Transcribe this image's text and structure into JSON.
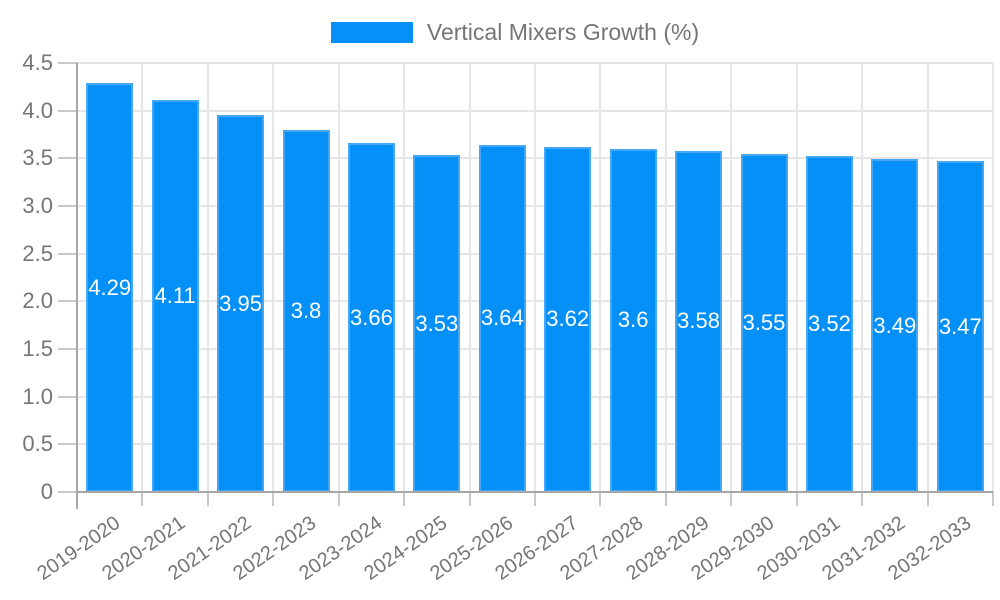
{
  "legend": {
    "label": "Vertical Mixers Growth (%)"
  },
  "chart_data": {
    "type": "bar",
    "title": "",
    "series_name": "Vertical Mixers Growth (%)",
    "categories": [
      "2019-2020",
      "2020-2021",
      "2021-2022",
      "2022-2023",
      "2023-2024",
      "2024-2025",
      "2025-2026",
      "2026-2027",
      "2027-2028",
      "2028-2029",
      "2029-2030",
      "2030-2031",
      "2031-2032",
      "2032-2033"
    ],
    "values": [
      4.29,
      4.11,
      3.95,
      3.8,
      3.66,
      3.53,
      3.64,
      3.62,
      3.6,
      3.58,
      3.55,
      3.52,
      3.49,
      3.47
    ],
    "bar_labels": [
      "4.29",
      "4.11",
      "3.95",
      "3.8",
      "3.66",
      "3.53",
      "3.64",
      "3.62",
      "3.6",
      "3.58",
      "3.55",
      "3.52",
      "3.49",
      "3.47"
    ],
    "xlabel": "",
    "ylabel": "",
    "ylim": [
      0,
      4.5
    ],
    "y_ticks": [
      "4.5",
      "4.0",
      "3.5",
      "3.0",
      "2.5",
      "2.0",
      "1.5",
      "1.0",
      "0.5",
      "0"
    ],
    "grid": true,
    "legend_position": "top-center",
    "colors": {
      "bar": "#0590F7",
      "bar_edge": "#45A8F4",
      "grid": "#E6E6E6",
      "axis": "#A6A6A6",
      "tick": "#C9C9C9",
      "text": "#757575",
      "bar_label": "#FFFFFF",
      "background": "#FFFFFF"
    }
  }
}
